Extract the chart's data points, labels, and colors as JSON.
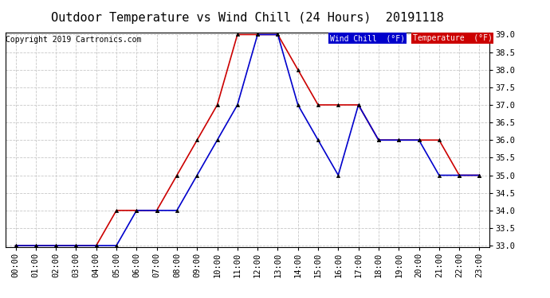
{
  "title": "Outdoor Temperature vs Wind Chill (24 Hours)  20191118",
  "copyright": "Copyright 2019 Cartronics.com",
  "legend_wind_chill": "Wind Chill  (°F)",
  "legend_temperature": "Temperature  (°F)",
  "background_color": "#ffffff",
  "plot_bg_color": "#ffffff",
  "grid_color": "#c8c8c8",
  "hours": [
    0,
    1,
    2,
    3,
    4,
    5,
    6,
    7,
    8,
    9,
    10,
    11,
    12,
    13,
    14,
    15,
    16,
    17,
    18,
    19,
    20,
    21,
    22,
    23
  ],
  "temperature": [
    33.0,
    33.0,
    33.0,
    33.0,
    33.0,
    34.0,
    34.0,
    34.0,
    35.0,
    36.0,
    37.0,
    39.0,
    39.0,
    39.0,
    38.0,
    37.0,
    37.0,
    37.0,
    36.0,
    36.0,
    36.0,
    36.0,
    35.0,
    35.0
  ],
  "wind_chill": [
    33.0,
    33.0,
    33.0,
    33.0,
    33.0,
    33.0,
    34.0,
    34.0,
    34.0,
    35.0,
    36.0,
    37.0,
    39.0,
    39.0,
    37.0,
    36.0,
    35.0,
    37.0,
    36.0,
    36.0,
    36.0,
    35.0,
    35.0,
    35.0
  ],
  "ylim_min": 33.0,
  "ylim_max": 39.0,
  "temp_color": "#cc0000",
  "wind_chill_color": "#0000cc",
  "marker": "^",
  "marker_size": 3,
  "line_width": 1.2,
  "title_fontsize": 11,
  "tick_fontsize": 7.5,
  "copyright_fontsize": 7
}
